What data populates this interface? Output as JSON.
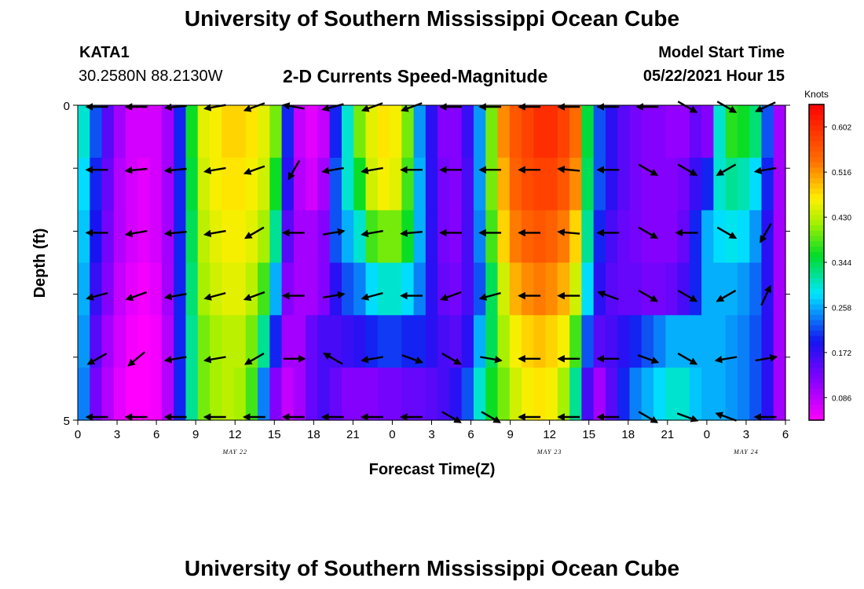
{
  "title": "University of Southern Mississippi Ocean Cube",
  "footer_title": "University of Southern Mississippi Ocean Cube",
  "station": {
    "id": "KATA1",
    "coords": "30.2580N  88.2130W"
  },
  "model_start": {
    "label": "Model Start Time",
    "value": "05/22/2021 Hour 15"
  },
  "chart_data": {
    "type": "heatmap",
    "title": "2-D Currents Speed-Magnitude",
    "xlabel": "Forecast Time(Z)",
    "ylabel": "Depth (ft)",
    "x_tick_labels": [
      "0",
      "3",
      "6",
      "9",
      "12",
      "15",
      "18",
      "21",
      "0",
      "3",
      "6",
      "9",
      "12",
      "15",
      "18",
      "21",
      "0",
      "3",
      "6"
    ],
    "x_tick_hours": [
      0,
      3,
      6,
      9,
      12,
      15,
      18,
      21,
      24,
      27,
      30,
      33,
      36,
      39,
      42,
      45,
      48,
      51,
      54
    ],
    "date_labels": [
      {
        "text": "MAY 22",
        "hour": 12
      },
      {
        "text": "MAY 23",
        "hour": 36
      },
      {
        "text": "MAY 24",
        "hour": 51
      }
    ],
    "xlim": [
      0,
      54
    ],
    "ylim": [
      0,
      5
    ],
    "y_tick_labels": [
      "0",
      "5"
    ],
    "y_minor_ticks": [
      1,
      2,
      3,
      4
    ],
    "colorbar": {
      "label": "Knots",
      "min": 0.043,
      "max": 0.645,
      "ticks": [
        0.086,
        0.172,
        0.258,
        0.344,
        0.43,
        0.516,
        0.602
      ]
    },
    "depth_rows": [
      0,
      1,
      2,
      3,
      4,
      5
    ],
    "speed_rows": [
      [
        0.3,
        0.22,
        0.15,
        0.1,
        0.07,
        0.07,
        0.07,
        0.1,
        0.2,
        0.36,
        0.45,
        0.46,
        0.48,
        0.48,
        0.47,
        0.45,
        0.4,
        0.2,
        0.08,
        0.06,
        0.08,
        0.2,
        0.3,
        0.4,
        0.45,
        0.47,
        0.46,
        0.4,
        0.25,
        0.18,
        0.12,
        0.12,
        0.17,
        0.25,
        0.4,
        0.52,
        0.56,
        0.58,
        0.6,
        0.6,
        0.58,
        0.54,
        0.35,
        0.22,
        0.18,
        0.15,
        0.13,
        0.12,
        0.12,
        0.11,
        0.11,
        0.14,
        0.12,
        0.3,
        0.37,
        0.36,
        0.33,
        0.22,
        0.1
      ],
      [
        0.28,
        0.2,
        0.14,
        0.09,
        0.07,
        0.06,
        0.07,
        0.1,
        0.2,
        0.35,
        0.44,
        0.46,
        0.47,
        0.47,
        0.46,
        0.44,
        0.36,
        0.18,
        0.09,
        0.07,
        0.1,
        0.22,
        0.3,
        0.36,
        0.44,
        0.46,
        0.45,
        0.38,
        0.26,
        0.18,
        0.13,
        0.12,
        0.16,
        0.25,
        0.4,
        0.5,
        0.55,
        0.57,
        0.58,
        0.58,
        0.56,
        0.52,
        0.34,
        0.22,
        0.18,
        0.15,
        0.13,
        0.12,
        0.12,
        0.12,
        0.13,
        0.17,
        0.2,
        0.3,
        0.32,
        0.31,
        0.28,
        0.2,
        0.1
      ],
      [
        0.27,
        0.19,
        0.13,
        0.09,
        0.07,
        0.06,
        0.07,
        0.1,
        0.2,
        0.34,
        0.43,
        0.45,
        0.46,
        0.46,
        0.45,
        0.42,
        0.32,
        0.15,
        0.1,
        0.1,
        0.12,
        0.22,
        0.26,
        0.3,
        0.38,
        0.4,
        0.4,
        0.36,
        0.26,
        0.18,
        0.13,
        0.12,
        0.16,
        0.24,
        0.38,
        0.48,
        0.53,
        0.55,
        0.56,
        0.55,
        0.53,
        0.48,
        0.32,
        0.2,
        0.16,
        0.14,
        0.13,
        0.12,
        0.12,
        0.12,
        0.14,
        0.2,
        0.26,
        0.28,
        0.29,
        0.28,
        0.25,
        0.18,
        0.1
      ],
      [
        0.26,
        0.17,
        0.12,
        0.08,
        0.06,
        0.05,
        0.06,
        0.1,
        0.2,
        0.33,
        0.42,
        0.44,
        0.45,
        0.45,
        0.43,
        0.38,
        0.26,
        0.12,
        0.1,
        0.1,
        0.12,
        0.18,
        0.22,
        0.24,
        0.28,
        0.3,
        0.3,
        0.28,
        0.24,
        0.18,
        0.14,
        0.13,
        0.16,
        0.22,
        0.34,
        0.44,
        0.5,
        0.52,
        0.53,
        0.52,
        0.5,
        0.44,
        0.28,
        0.18,
        0.15,
        0.14,
        0.14,
        0.13,
        0.13,
        0.14,
        0.16,
        0.2,
        0.26,
        0.26,
        0.26,
        0.25,
        0.23,
        0.18,
        0.1
      ],
      [
        0.25,
        0.15,
        0.1,
        0.07,
        0.05,
        0.04,
        0.05,
        0.09,
        0.2,
        0.32,
        0.4,
        0.42,
        0.43,
        0.43,
        0.4,
        0.32,
        0.2,
        0.1,
        0.1,
        0.14,
        0.16,
        0.16,
        0.17,
        0.18,
        0.2,
        0.21,
        0.21,
        0.2,
        0.2,
        0.18,
        0.16,
        0.15,
        0.18,
        0.26,
        0.34,
        0.42,
        0.46,
        0.48,
        0.49,
        0.48,
        0.46,
        0.38,
        0.22,
        0.15,
        0.16,
        0.18,
        0.2,
        0.22,
        0.24,
        0.26,
        0.26,
        0.26,
        0.26,
        0.26,
        0.25,
        0.24,
        0.22,
        0.18,
        0.1
      ],
      [
        0.24,
        0.13,
        0.09,
        0.06,
        0.04,
        0.04,
        0.05,
        0.09,
        0.2,
        0.32,
        0.4,
        0.42,
        0.43,
        0.42,
        0.38,
        0.24,
        0.12,
        0.08,
        0.1,
        0.14,
        0.16,
        0.14,
        0.12,
        0.12,
        0.12,
        0.13,
        0.13,
        0.14,
        0.14,
        0.15,
        0.16,
        0.18,
        0.22,
        0.3,
        0.36,
        0.4,
        0.44,
        0.46,
        0.47,
        0.46,
        0.42,
        0.32,
        0.16,
        0.1,
        0.15,
        0.2,
        0.24,
        0.26,
        0.28,
        0.3,
        0.3,
        0.27,
        0.26,
        0.26,
        0.25,
        0.24,
        0.22,
        0.18,
        0.1
      ]
    ],
    "vector_times": [
      1.5,
      4.5,
      7.5,
      10.5,
      13.5,
      16.5,
      19.5,
      22.5,
      25.5,
      28.5,
      31.5,
      34.5,
      37.5,
      40.5,
      43.5,
      46.5,
      49.5,
      52.5
    ],
    "vector_depths": [
      0,
      1,
      2,
      3,
      4,
      5
    ],
    "vector_angles_deg": [
      [
        180,
        180,
        185,
        190,
        200,
        170,
        195,
        200,
        200,
        180,
        180,
        180,
        180,
        180,
        180,
        330,
        330,
        205
      ],
      [
        180,
        185,
        185,
        190,
        200,
        240,
        190,
        190,
        180,
        180,
        180,
        180,
        175,
        180,
        330,
        330,
        210,
        190
      ],
      [
        180,
        190,
        185,
        190,
        210,
        180,
        10,
        190,
        185,
        180,
        180,
        180,
        175,
        180,
        330,
        180,
        330,
        240
      ],
      [
        195,
        200,
        190,
        195,
        200,
        180,
        10,
        195,
        180,
        200,
        195,
        180,
        180,
        160,
        330,
        330,
        210,
        65
      ],
      [
        210,
        220,
        190,
        190,
        210,
        0,
        150,
        190,
        340,
        330,
        350,
        180,
        180,
        180,
        340,
        330,
        190,
        10
      ],
      [
        180,
        180,
        180,
        180,
        180,
        180,
        180,
        180,
        180,
        330,
        330,
        180,
        180,
        180,
        330,
        340,
        160,
        180
      ]
    ],
    "vector_scale": 0.9
  }
}
